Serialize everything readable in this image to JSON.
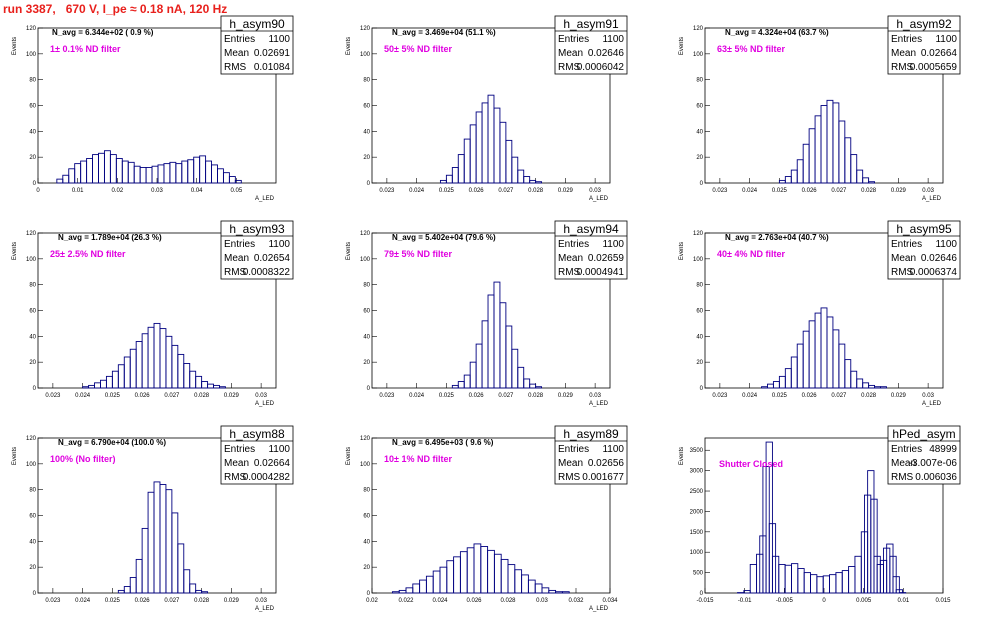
{
  "title": "run 3387,   670 V, I_pe ≈ 0.18 nA, 120 Hz",
  "chart_data": [
    {
      "type": "bar",
      "name": "h_asym90",
      "navg": "N_avg = 6.344e+02 ( 0.9 %)",
      "filter": "1± 0.1% ND filter",
      "stats": {
        "entries": "1100",
        "mean": "0.02691",
        "rms": "0.01084"
      },
      "xlim": [
        0,
        0.06
      ],
      "ylim": [
        0,
        120
      ],
      "xticks": [
        "0",
        "0.01",
        "0.02",
        "0.03",
        "0.04",
        "0.05"
      ],
      "xtickvals": [
        0,
        0.01,
        0.02,
        0.03,
        0.04,
        0.05
      ],
      "yticks": [
        "0",
        "20",
        "40",
        "60",
        "80",
        "100",
        "120"
      ],
      "ytickvals": [
        0,
        20,
        40,
        60,
        80,
        100,
        120
      ],
      "xlabel": "A_LED",
      "ylabel": "Events",
      "x": [
        0.0055,
        0.007,
        0.0085,
        0.01,
        0.0115,
        0.013,
        0.0145,
        0.016,
        0.0175,
        0.019,
        0.0205,
        0.022,
        0.0235,
        0.025,
        0.0265,
        0.028,
        0.0295,
        0.031,
        0.0325,
        0.034,
        0.0355,
        0.037,
        0.0385,
        0.04,
        0.0415,
        0.043,
        0.0445,
        0.046,
        0.0475,
        0.049,
        0.0505
      ],
      "values": [
        3,
        6,
        11,
        15,
        17,
        19,
        22,
        23,
        25,
        22,
        19,
        17,
        16,
        13,
        12,
        12,
        13,
        14,
        15,
        16,
        15,
        17,
        18,
        20,
        21,
        17,
        14,
        11,
        8,
        5,
        2
      ]
    },
    {
      "type": "bar",
      "name": "h_asym91",
      "navg": "N_avg = 3.469e+04 (51.1 %)",
      "filter": "50± 5% ND filter",
      "stats": {
        "entries": "1100",
        "mean": "0.02646",
        "rms": "0.0006042"
      },
      "xlim": [
        0.0225,
        0.0305
      ],
      "ylim": [
        0,
        120
      ],
      "xticks": [
        "0.023",
        "0.024",
        "0.025",
        "0.026",
        "0.027",
        "0.028",
        "0.029",
        "0.03"
      ],
      "xtickvals": [
        0.023,
        0.024,
        0.025,
        0.026,
        0.027,
        0.028,
        0.029,
        0.03
      ],
      "yticks": [
        "0",
        "20",
        "40",
        "60",
        "80",
        "100",
        "120"
      ],
      "ytickvals": [
        0,
        20,
        40,
        60,
        80,
        100,
        120
      ],
      "xlabel": "A_LED",
      "ylabel": "Events",
      "x": [
        0.0249,
        0.0251,
        0.0253,
        0.0255,
        0.0257,
        0.0259,
        0.0261,
        0.0263,
        0.0265,
        0.0267,
        0.0269,
        0.0271,
        0.0273,
        0.0275,
        0.0277,
        0.0279,
        0.0281
      ],
      "values": [
        2,
        6,
        12,
        22,
        34,
        45,
        55,
        62,
        68,
        58,
        47,
        33,
        20,
        10,
        5,
        2,
        1
      ]
    },
    {
      "type": "bar",
      "name": "h_asym92",
      "navg": "N_avg = 4.324e+04 (63.7 %)",
      "filter": "63± 5% ND filter",
      "stats": {
        "entries": "1100",
        "mean": "0.02664",
        "rms": "0.0005659"
      },
      "xlim": [
        0.0225,
        0.0305
      ],
      "ylim": [
        0,
        120
      ],
      "xticks": [
        "0.023",
        "0.024",
        "0.025",
        "0.026",
        "0.027",
        "0.028",
        "0.029",
        "0.03"
      ],
      "xtickvals": [
        0.023,
        0.024,
        0.025,
        0.026,
        0.027,
        0.028,
        0.029,
        0.03
      ],
      "yticks": [
        "0",
        "20",
        "40",
        "60",
        "80",
        "100",
        "120"
      ],
      "ytickvals": [
        0,
        20,
        40,
        60,
        80,
        100,
        120
      ],
      "xlabel": "A_LED",
      "ylabel": "Events",
      "x": [
        0.0251,
        0.0253,
        0.0255,
        0.0257,
        0.0259,
        0.0261,
        0.0263,
        0.0265,
        0.0267,
        0.0269,
        0.0271,
        0.0273,
        0.0275,
        0.0277,
        0.0279,
        0.0281
      ],
      "values": [
        2,
        5,
        10,
        18,
        30,
        42,
        52,
        60,
        64,
        62,
        48,
        35,
        22,
        10,
        4,
        1
      ]
    },
    {
      "type": "bar",
      "name": "h_asym93",
      "navg": "N_avg = 1.789e+04 (26.3 %)",
      "filter": "25± 2.5% ND filter",
      "stats": {
        "entries": "1100",
        "mean": "0.02654",
        "rms": "0.0008322"
      },
      "xlim": [
        0.0225,
        0.0305
      ],
      "ylim": [
        0,
        120
      ],
      "xticks": [
        "0.023",
        "0.024",
        "0.025",
        "0.026",
        "0.027",
        "0.028",
        "0.029",
        "0.03"
      ],
      "xtickvals": [
        0.023,
        0.024,
        0.025,
        0.026,
        0.027,
        0.028,
        0.029,
        0.03
      ],
      "yticks": [
        "0",
        "20",
        "40",
        "60",
        "80",
        "100",
        "120"
      ],
      "ytickvals": [
        0,
        20,
        40,
        60,
        80,
        100,
        120
      ],
      "xlabel": "A_LED",
      "ylabel": "Events",
      "x": [
        0.0241,
        0.0243,
        0.0245,
        0.0247,
        0.0249,
        0.0251,
        0.0253,
        0.0255,
        0.0257,
        0.0259,
        0.0261,
        0.0263,
        0.0265,
        0.0267,
        0.0269,
        0.0271,
        0.0273,
        0.0275,
        0.0277,
        0.0279,
        0.0281,
        0.0283,
        0.0285,
        0.0287
      ],
      "values": [
        1,
        2,
        4,
        6,
        9,
        13,
        18,
        24,
        30,
        36,
        42,
        47,
        50,
        46,
        40,
        33,
        26,
        19,
        13,
        9,
        5,
        3,
        2,
        1
      ]
    },
    {
      "type": "bar",
      "name": "h_asym94",
      "navg": "N_avg = 5.402e+04 (79.6 %)",
      "filter": "79± 5% ND filter",
      "stats": {
        "entries": "1100",
        "mean": "0.02659",
        "rms": "0.0004941"
      },
      "xlim": [
        0.0225,
        0.0305
      ],
      "ylim": [
        0,
        120
      ],
      "xticks": [
        "0.023",
        "0.024",
        "0.025",
        "0.026",
        "0.027",
        "0.028",
        "0.029",
        "0.03"
      ],
      "xtickvals": [
        0.023,
        0.024,
        0.025,
        0.026,
        0.027,
        0.028,
        0.029,
        0.03
      ],
      "yticks": [
        "0",
        "20",
        "40",
        "60",
        "80",
        "100",
        "120"
      ],
      "ytickvals": [
        0,
        20,
        40,
        60,
        80,
        100,
        120
      ],
      "xlabel": "A_LED",
      "ylabel": "Events",
      "x": [
        0.0253,
        0.0255,
        0.0257,
        0.0259,
        0.0261,
        0.0263,
        0.0265,
        0.0267,
        0.0269,
        0.0271,
        0.0273,
        0.0275,
        0.0277,
        0.0279,
        0.0281
      ],
      "values": [
        2,
        5,
        10,
        20,
        34,
        52,
        72,
        82,
        66,
        48,
        30,
        16,
        7,
        3,
        1
      ]
    },
    {
      "type": "bar",
      "name": "h_asym95",
      "navg": "N_avg = 2.763e+04 (40.7 %)",
      "filter": "40± 4% ND filter",
      "stats": {
        "entries": "1100",
        "mean": "0.02646",
        "rms": "0.0006374"
      },
      "xlim": [
        0.0225,
        0.0305
      ],
      "ylim": [
        0,
        120
      ],
      "xticks": [
        "0.023",
        "0.024",
        "0.025",
        "0.026",
        "0.027",
        "0.028",
        "0.029",
        "0.03"
      ],
      "xtickvals": [
        0.023,
        0.024,
        0.025,
        0.026,
        0.027,
        0.028,
        0.029,
        0.03
      ],
      "yticks": [
        "0",
        "20",
        "40",
        "60",
        "80",
        "100",
        "120"
      ],
      "ytickvals": [
        0,
        20,
        40,
        60,
        80,
        100,
        120
      ],
      "xlabel": "A_LED",
      "ylabel": "Events",
      "x": [
        0.0245,
        0.0247,
        0.0249,
        0.0251,
        0.0253,
        0.0255,
        0.0257,
        0.0259,
        0.0261,
        0.0263,
        0.0265,
        0.0267,
        0.0269,
        0.0271,
        0.0273,
        0.0275,
        0.0277,
        0.0279,
        0.0281,
        0.0283,
        0.0285
      ],
      "values": [
        1,
        3,
        5,
        9,
        15,
        24,
        34,
        44,
        52,
        58,
        62,
        55,
        45,
        34,
        22,
        13,
        7,
        4,
        2,
        1,
        1
      ]
    },
    {
      "type": "bar",
      "name": "h_asym88",
      "navg": "N_avg = 6.790e+04 (100.0 %)",
      "filter": "100% (No filter)",
      "stats": {
        "entries": "1100",
        "mean": "0.02664",
        "rms": "0.0004282"
      },
      "xlim": [
        0.0225,
        0.0305
      ],
      "ylim": [
        0,
        120
      ],
      "xticks": [
        "0.023",
        "0.024",
        "0.025",
        "0.026",
        "0.027",
        "0.028",
        "0.029",
        "0.03"
      ],
      "xtickvals": [
        0.023,
        0.024,
        0.025,
        0.026,
        0.027,
        0.028,
        0.029,
        0.03
      ],
      "yticks": [
        "0",
        "20",
        "40",
        "60",
        "80",
        "100",
        "120"
      ],
      "ytickvals": [
        0,
        20,
        40,
        60,
        80,
        100,
        120
      ],
      "xlabel": "A_LED",
      "ylabel": "Events",
      "x": [
        0.0253,
        0.0255,
        0.0257,
        0.0259,
        0.0261,
        0.0263,
        0.0265,
        0.0267,
        0.0269,
        0.0271,
        0.0273,
        0.0275,
        0.0277,
        0.0279,
        0.0281
      ],
      "values": [
        2,
        5,
        12,
        26,
        50,
        78,
        86,
        84,
        80,
        62,
        38,
        18,
        7,
        2,
        1
      ]
    },
    {
      "type": "bar",
      "name": "h_asym89",
      "navg": "N_avg = 6.495e+03 ( 9.6 %)",
      "filter": "10± 1% ND filter",
      "stats": {
        "entries": "1100",
        "mean": "0.02656",
        "rms": "0.001677"
      },
      "xlim": [
        0.02,
        0.034
      ],
      "ylim": [
        0,
        120
      ],
      "xticks": [
        "0.02",
        "0.022",
        "0.024",
        "0.026",
        "0.028",
        "0.03",
        "0.032",
        "0.034"
      ],
      "xtickvals": [
        0.02,
        0.022,
        0.024,
        0.026,
        0.028,
        0.03,
        0.032,
        0.034
      ],
      "yticks": [
        "0",
        "20",
        "40",
        "60",
        "80",
        "100",
        "120"
      ],
      "ytickvals": [
        0,
        20,
        40,
        60,
        80,
        100,
        120
      ],
      "xlabel": "A_LED",
      "ylabel": "Events",
      "x": [
        0.0214,
        0.0218,
        0.0222,
        0.0226,
        0.023,
        0.0234,
        0.0238,
        0.0242,
        0.0246,
        0.025,
        0.0254,
        0.0258,
        0.0262,
        0.0266,
        0.027,
        0.0274,
        0.0278,
        0.0282,
        0.0286,
        0.029,
        0.0294,
        0.0298,
        0.0302,
        0.0306,
        0.031,
        0.0314
      ],
      "values": [
        1,
        2,
        4,
        7,
        10,
        13,
        17,
        20,
        25,
        28,
        32,
        35,
        38,
        36,
        33,
        30,
        26,
        22,
        18,
        14,
        10,
        7,
        4,
        2,
        1,
        1
      ]
    },
    {
      "type": "bar",
      "name": "hPed_asym",
      "navg": "",
      "filter": "Shutter Closed",
      "stats": {
        "entries": "48999",
        "mean": "-3.007e-06",
        "rms": "0.006036"
      },
      "xlim": [
        -0.015,
        0.015
      ],
      "ylim": [
        0,
        3800
      ],
      "xticks": [
        "-0.015",
        "-0.01",
        "-0.005",
        "0",
        "0.005",
        "0.01",
        "0.015"
      ],
      "xtickvals": [
        -0.015,
        -0.01,
        -0.005,
        0,
        0.005,
        0.01,
        0.015
      ],
      "yticks": [
        "0",
        "500",
        "1000",
        "1500",
        "2000",
        "2500",
        "3000",
        "3500"
      ],
      "ytickvals": [
        0,
        500,
        1000,
        1500,
        2000,
        2500,
        3000,
        3500
      ],
      "xlabel": "",
      "ylabel": "Events",
      "x": [
        -0.0105,
        -0.0097,
        -0.0089,
        -0.0081,
        -0.0077,
        -0.0073,
        -0.0069,
        -0.0065,
        -0.0061,
        -0.0053,
        -0.0045,
        -0.0037,
        -0.0029,
        -0.0021,
        -0.0013,
        -0.0005,
        0.0003,
        0.0011,
        0.0019,
        0.0027,
        0.0035,
        0.0043,
        0.0051,
        0.0055,
        0.0059,
        0.0063,
        0.0067,
        0.0071,
        0.0075,
        0.0079,
        0.0083,
        0.0087,
        0.0091,
        0.0095,
        0.0099
      ],
      "values": [
        10,
        60,
        700,
        950,
        1400,
        3100,
        3700,
        1700,
        900,
        700,
        680,
        720,
        600,
        500,
        450,
        400,
        420,
        450,
        500,
        550,
        650,
        900,
        1500,
        2400,
        3000,
        2300,
        900,
        700,
        800,
        1100,
        1200,
        900,
        400,
        80,
        10
      ]
    }
  ]
}
